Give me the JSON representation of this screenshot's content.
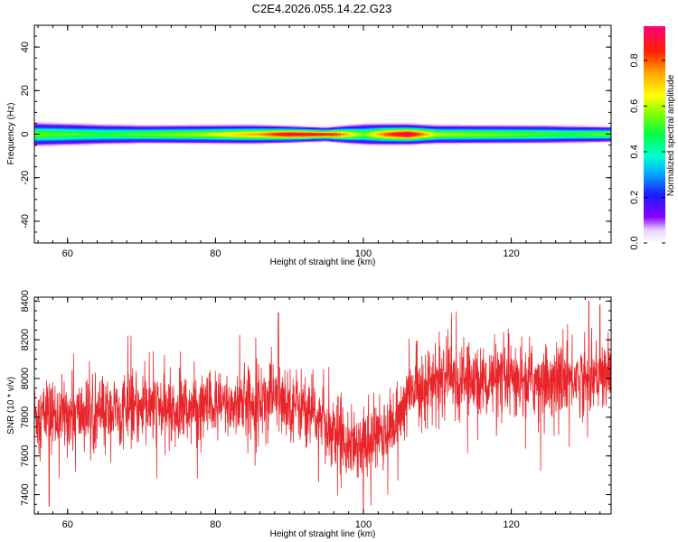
{
  "title": "C2E4.2026.055.14.22.G23",
  "chart_data": [
    {
      "type": "heatmap",
      "xlabel": "Height of straight line (km)",
      "ylabel": "Frequency (Hz)",
      "xlim": [
        55.5,
        133.5
      ],
      "ylim": [
        -50,
        50
      ],
      "x_ticks": [
        60,
        80,
        100,
        120
      ],
      "y_ticks": [
        40,
        20,
        0,
        -20,
        -40
      ],
      "colorbar": {
        "label": "Normalized spectral amplitude",
        "range": [
          0,
          0.95
        ],
        "ticks": [
          "0.0",
          "0.2",
          "0.4",
          "0.6",
          "0.8"
        ]
      },
      "band_center_hz": 0,
      "band_halfwidth_hz": [
        {
          "x": 56,
          "w": 4.5
        },
        {
          "x": 70,
          "w": 3.5
        },
        {
          "x": 85,
          "w": 3.5
        },
        {
          "x": 95,
          "w": 2.5
        },
        {
          "x": 100,
          "w": 4
        },
        {
          "x": 110,
          "w": 3.5
        },
        {
          "x": 125,
          "w": 3.5
        },
        {
          "x": 133,
          "w": 3
        }
      ],
      "center_amplitude": [
        {
          "x": 56,
          "a": 0.55
        },
        {
          "x": 65,
          "a": 0.5
        },
        {
          "x": 78,
          "a": 0.6
        },
        {
          "x": 86,
          "a": 0.75
        },
        {
          "x": 90,
          "a": 0.92
        },
        {
          "x": 96,
          "a": 0.85
        },
        {
          "x": 100,
          "a": 0.55
        },
        {
          "x": 103,
          "a": 0.8
        },
        {
          "x": 106,
          "a": 0.95
        },
        {
          "x": 110,
          "a": 0.6
        },
        {
          "x": 120,
          "a": 0.55
        },
        {
          "x": 128,
          "a": 0.5
        },
        {
          "x": 133,
          "a": 0.55
        }
      ]
    },
    {
      "type": "line",
      "xlabel": "Height of straight line (km)",
      "ylabel": "SNR (10 * v/v)",
      "xlim": [
        55.5,
        133.5
      ],
      "ylim": [
        7300,
        8420
      ],
      "x_ticks": [
        60,
        80,
        100,
        120
      ],
      "y_ticks": [
        8400,
        8200,
        8000,
        7800,
        7600,
        7400
      ],
      "color": "#e8252a",
      "trend": [
        {
          "x": 55.5,
          "y": 7810
        },
        {
          "x": 60,
          "y": 7810
        },
        {
          "x": 70,
          "y": 7840
        },
        {
          "x": 80,
          "y": 7850
        },
        {
          "x": 88,
          "y": 7900
        },
        {
          "x": 92,
          "y": 7850
        },
        {
          "x": 96,
          "y": 7720
        },
        {
          "x": 100,
          "y": 7660
        },
        {
          "x": 104,
          "y": 7750
        },
        {
          "x": 107,
          "y": 7960
        },
        {
          "x": 112,
          "y": 7990
        },
        {
          "x": 120,
          "y": 7980
        },
        {
          "x": 128,
          "y": 8000
        },
        {
          "x": 133.5,
          "y": 8010
        }
      ],
      "noise_amplitude": 120,
      "extremes": [
        {
          "x": 57.5,
          "y": 7340
        },
        {
          "x": 88.5,
          "y": 8340
        },
        {
          "x": 100,
          "y": 7300
        },
        {
          "x": 130.5,
          "y": 8400
        },
        {
          "x": 132,
          "y": 8380
        }
      ]
    }
  ]
}
